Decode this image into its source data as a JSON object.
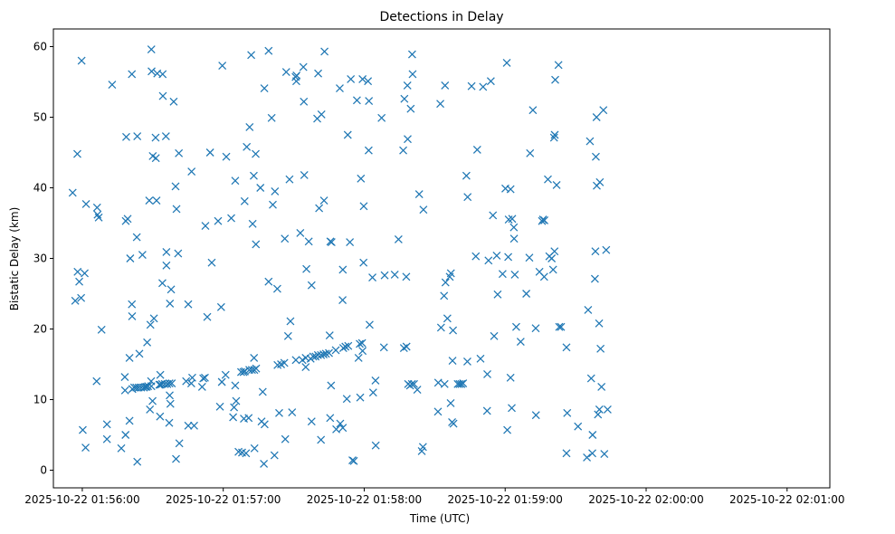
{
  "chart_data": {
    "type": "scatter",
    "title": "Detections in Delay",
    "xlabel": "Time (UTC)",
    "ylabel": "Bistatic Delay (km)",
    "marker": "x",
    "color": "#1f77b4",
    "grid": false,
    "xlim": [
      -12.3,
      318.2
    ],
    "ylim": [
      -2.5,
      62.5
    ],
    "x_unit": "seconds after 2025-10-22 01:56:00",
    "x_ticks": [
      {
        "value": 0,
        "label": "2025-10-22 01:56:00"
      },
      {
        "value": 60,
        "label": "2025-10-22 01:57:00"
      },
      {
        "value": 120,
        "label": "2025-10-22 01:58:00"
      },
      {
        "value": 180,
        "label": "2025-10-22 01:59:00"
      },
      {
        "value": 240,
        "label": "2025-10-22 02:00:00"
      },
      {
        "value": 300,
        "label": "2025-10-22 02:01:00"
      }
    ],
    "y_ticks": [
      {
        "value": 0,
        "label": "0"
      },
      {
        "value": 10,
        "label": "10"
      },
      {
        "value": 20,
        "label": "20"
      },
      {
        "value": 30,
        "label": "30"
      },
      {
        "value": 40,
        "label": "40"
      },
      {
        "value": 50,
        "label": "50"
      },
      {
        "value": 60,
        "label": "60"
      }
    ],
    "points": [
      [
        -4.1,
        39.3
      ],
      [
        -3.0,
        24.0
      ],
      [
        -2.1,
        44.8
      ],
      [
        -2.0,
        28.1
      ],
      [
        -1.3,
        26.7
      ],
      [
        -0.5,
        24.4
      ],
      [
        -0.3,
        58.0
      ],
      [
        0.2,
        5.7
      ],
      [
        1.0,
        27.9
      ],
      [
        1.4,
        3.2
      ],
      [
        1.6,
        37.7
      ],
      [
        6.1,
        12.6
      ],
      [
        6.3,
        37.2
      ],
      [
        6.5,
        36.2
      ],
      [
        7.0,
        35.8
      ],
      [
        8.2,
        19.9
      ],
      [
        10.5,
        6.5
      ],
      [
        10.5,
        4.4
      ],
      [
        12.7,
        54.6
      ],
      [
        16.6,
        3.1
      ],
      [
        18.1,
        13.2
      ],
      [
        18.2,
        11.3
      ],
      [
        18.4,
        5.0
      ],
      [
        18.5,
        35.3
      ],
      [
        18.7,
        47.2
      ],
      [
        19.3,
        35.6
      ],
      [
        20.1,
        7.0
      ],
      [
        20.1,
        15.9
      ],
      [
        20.4,
        30.0
      ],
      [
        21.1,
        56.1
      ],
      [
        21.1,
        23.5
      ],
      [
        21.2,
        21.8
      ],
      [
        21.3,
        11.5
      ],
      [
        22.1,
        11.7
      ],
      [
        23.0,
        11.7
      ],
      [
        23.2,
        33.0
      ],
      [
        23.4,
        47.3
      ],
      [
        23.4,
        1.2
      ],
      [
        24.0,
        11.7
      ],
      [
        24.3,
        16.5
      ],
      [
        25.1,
        11.7
      ],
      [
        25.6,
        30.5
      ],
      [
        26.2,
        11.7
      ],
      [
        26.8,
        11.8
      ],
      [
        27.4,
        11.8
      ],
      [
        27.6,
        18.1
      ],
      [
        28.0,
        11.9
      ],
      [
        28.5,
        38.2
      ],
      [
        28.8,
        8.6
      ],
      [
        29.0,
        20.6
      ],
      [
        29.3,
        12.6
      ],
      [
        29.4,
        11.9
      ],
      [
        29.4,
        59.6
      ],
      [
        29.5,
        56.5
      ],
      [
        29.9,
        9.8
      ],
      [
        30.0,
        44.5
      ],
      [
        30.5,
        21.5
      ],
      [
        31.2,
        47.1
      ],
      [
        31.3,
        44.2
      ],
      [
        31.6,
        38.2
      ],
      [
        31.9,
        56.2
      ],
      [
        32.8,
        12.1
      ],
      [
        33.1,
        7.6
      ],
      [
        33.2,
        13.5
      ],
      [
        33.3,
        12.1
      ],
      [
        34.0,
        12.2
      ],
      [
        34.1,
        26.5
      ],
      [
        34.2,
        56.1
      ],
      [
        34.3,
        53.0
      ],
      [
        35.1,
        12.2
      ],
      [
        35.6,
        47.3
      ],
      [
        35.8,
        29.0
      ],
      [
        35.8,
        30.9
      ],
      [
        36.2,
        12.2
      ],
      [
        37.0,
        6.7
      ],
      [
        37.1,
        12.3
      ],
      [
        37.2,
        10.6
      ],
      [
        37.3,
        23.6
      ],
      [
        37.5,
        9.4
      ],
      [
        37.8,
        25.6
      ],
      [
        38.1,
        12.3
      ],
      [
        38.9,
        52.2
      ],
      [
        39.7,
        40.2
      ],
      [
        39.9,
        1.6
      ],
      [
        40.1,
        37.0
      ],
      [
        40.8,
        30.7
      ],
      [
        41.1,
        44.9
      ],
      [
        41.3,
        3.8
      ],
      [
        44.2,
        12.6
      ],
      [
        45.1,
        23.5
      ],
      [
        45.1,
        6.3
      ],
      [
        46.4,
        12.3
      ],
      [
        46.5,
        42.3
      ],
      [
        46.8,
        13.1
      ],
      [
        47.6,
        6.3
      ],
      [
        51.0,
        11.8
      ],
      [
        51.5,
        13.0
      ],
      [
        52.2,
        13.1
      ],
      [
        52.4,
        34.6
      ],
      [
        53.2,
        21.7
      ],
      [
        54.4,
        45.0
      ],
      [
        55.1,
        29.4
      ],
      [
        57.8,
        35.3
      ],
      [
        58.6,
        9.0
      ],
      [
        59.1,
        23.1
      ],
      [
        59.4,
        12.5
      ],
      [
        59.6,
        57.3
      ],
      [
        61.0,
        13.5
      ],
      [
        61.3,
        44.4
      ],
      [
        63.4,
        35.7
      ],
      [
        64.2,
        7.5
      ],
      [
        64.6,
        8.9
      ],
      [
        65.1,
        41.0
      ],
      [
        65.1,
        12.0
      ],
      [
        65.5,
        9.8
      ],
      [
        66.5,
        2.6
      ],
      [
        67.6,
        13.9
      ],
      [
        68.0,
        2.5
      ],
      [
        68.6,
        13.9
      ],
      [
        68.8,
        7.3
      ],
      [
        69.1,
        38.1
      ],
      [
        69.2,
        14.0
      ],
      [
        69.7,
        2.4
      ],
      [
        70.0,
        45.8
      ],
      [
        70.8,
        7.4
      ],
      [
        71.1,
        14.2
      ],
      [
        71.2,
        48.6
      ],
      [
        71.9,
        58.8
      ],
      [
        72.2,
        14.2
      ],
      [
        72.5,
        34.9
      ],
      [
        73.0,
        41.7
      ],
      [
        73.1,
        15.9
      ],
      [
        73.2,
        14.2
      ],
      [
        73.3,
        3.1
      ],
      [
        73.8,
        44.8
      ],
      [
        73.9,
        32.0
      ],
      [
        74.0,
        14.4
      ],
      [
        75.8,
        40.0
      ],
      [
        76.3,
        6.9
      ],
      [
        76.8,
        11.1
      ],
      [
        77.3,
        0.9
      ],
      [
        77.5,
        54.1
      ],
      [
        77.6,
        6.5
      ],
      [
        79.3,
        59.4
      ],
      [
        79.3,
        26.7
      ],
      [
        80.6,
        49.9
      ],
      [
        81.1,
        37.6
      ],
      [
        81.8,
        2.1
      ],
      [
        82.0,
        39.5
      ],
      [
        83.0,
        25.7
      ],
      [
        83.1,
        14.9
      ],
      [
        83.8,
        8.1
      ],
      [
        84.6,
        15.0
      ],
      [
        86.0,
        15.2
      ],
      [
        86.2,
        32.8
      ],
      [
        86.4,
        4.4
      ],
      [
        86.8,
        56.4
      ],
      [
        87.6,
        19.0
      ],
      [
        88.2,
        41.2
      ],
      [
        88.6,
        21.1
      ],
      [
        89.3,
        8.2
      ],
      [
        90.8,
        55.7
      ],
      [
        90.9,
        15.6
      ],
      [
        91.1,
        55.1
      ],
      [
        91.2,
        55.9
      ],
      [
        92.8,
        33.6
      ],
      [
        93.7,
        15.6
      ],
      [
        94.1,
        57.1
      ],
      [
        94.3,
        52.2
      ],
      [
        94.5,
        41.8
      ],
      [
        95.1,
        15.9
      ],
      [
        95.1,
        14.6
      ],
      [
        95.4,
        28.5
      ],
      [
        96.4,
        32.4
      ],
      [
        97.2,
        15.8
      ],
      [
        97.6,
        6.9
      ],
      [
        97.6,
        26.2
      ],
      [
        98.3,
        16.1
      ],
      [
        99.3,
        16.1
      ],
      [
        100.0,
        49.8
      ],
      [
        100.3,
        16.3
      ],
      [
        100.4,
        56.2
      ],
      [
        100.8,
        37.1
      ],
      [
        101.6,
        4.3
      ],
      [
        101.6,
        16.3
      ],
      [
        101.8,
        50.4
      ],
      [
        102.7,
        16.4
      ],
      [
        102.9,
        38.2
      ],
      [
        103.1,
        59.3
      ],
      [
        103.7,
        16.5
      ],
      [
        105.0,
        16.6
      ],
      [
        105.3,
        19.1
      ],
      [
        105.5,
        7.4
      ],
      [
        105.6,
        32.4
      ],
      [
        105.9,
        12.0
      ],
      [
        106.1,
        32.3
      ],
      [
        107.9,
        17.0
      ],
      [
        108.1,
        5.8
      ],
      [
        109.6,
        54.1
      ],
      [
        109.8,
        6.6
      ],
      [
        110.8,
        24.1
      ],
      [
        110.9,
        28.4
      ],
      [
        110.9,
        6.0
      ],
      [
        111.1,
        17.3
      ],
      [
        112.0,
        17.5
      ],
      [
        112.6,
        10.1
      ],
      [
        113.0,
        47.5
      ],
      [
        113.2,
        17.6
      ],
      [
        113.9,
        32.3
      ],
      [
        114.3,
        55.4
      ],
      [
        115.0,
        1.4
      ],
      [
        115.6,
        1.3
      ],
      [
        116.9,
        52.4
      ],
      [
        117.6,
        15.9
      ],
      [
        118.1,
        17.9
      ],
      [
        118.3,
        10.3
      ],
      [
        118.6,
        41.3
      ],
      [
        119.1,
        18.0
      ],
      [
        119.3,
        16.9
      ],
      [
        119.3,
        55.4
      ],
      [
        119.7,
        29.4
      ],
      [
        119.8,
        37.4
      ],
      [
        121.6,
        55.1
      ],
      [
        121.9,
        45.3
      ],
      [
        122.0,
        52.3
      ],
      [
        122.3,
        20.6
      ],
      [
        123.5,
        27.3
      ],
      [
        123.8,
        11.0
      ],
      [
        124.8,
        12.7
      ],
      [
        124.9,
        3.5
      ],
      [
        127.4,
        49.9
      ],
      [
        128.4,
        17.4
      ],
      [
        128.7,
        27.6
      ],
      [
        133.0,
        27.7
      ],
      [
        134.6,
        32.7
      ],
      [
        136.6,
        45.3
      ],
      [
        136.9,
        17.3
      ],
      [
        137.1,
        52.6
      ],
      [
        137.9,
        27.4
      ],
      [
        138.0,
        17.5
      ],
      [
        138.4,
        54.5
      ],
      [
        138.5,
        46.9
      ],
      [
        138.7,
        12.2
      ],
      [
        139.5,
        12.0
      ],
      [
        139.8,
        51.2
      ],
      [
        140.3,
        12.2
      ],
      [
        140.4,
        58.9
      ],
      [
        140.6,
        56.1
      ],
      [
        141.2,
        12.2
      ],
      [
        142.6,
        11.4
      ],
      [
        143.4,
        39.1
      ],
      [
        144.5,
        2.7
      ],
      [
        145.0,
        3.3
      ],
      [
        145.2,
        36.9
      ],
      [
        151.4,
        8.3
      ],
      [
        151.5,
        12.4
      ],
      [
        152.4,
        51.9
      ],
      [
        152.7,
        20.2
      ],
      [
        154.0,
        24.7
      ],
      [
        154.2,
        12.2
      ],
      [
        154.4,
        54.5
      ],
      [
        154.6,
        26.6
      ],
      [
        155.4,
        21.5
      ],
      [
        156.4,
        27.4
      ],
      [
        156.8,
        9.5
      ],
      [
        156.9,
        27.9
      ],
      [
        157.4,
        6.8
      ],
      [
        157.6,
        15.5
      ],
      [
        157.8,
        19.8
      ],
      [
        158.0,
        6.6
      ],
      [
        159.8,
        12.2
      ],
      [
        160.6,
        12.2
      ],
      [
        161.4,
        12.2
      ],
      [
        162.1,
        12.3
      ],
      [
        163.5,
        41.7
      ],
      [
        163.9,
        15.4
      ],
      [
        164.0,
        38.7
      ],
      [
        165.7,
        54.4
      ],
      [
        167.5,
        30.3
      ],
      [
        168.1,
        45.4
      ],
      [
        169.5,
        15.8
      ],
      [
        170.6,
        54.3
      ],
      [
        172.3,
        8.4
      ],
      [
        172.4,
        13.6
      ],
      [
        172.9,
        29.7
      ],
      [
        173.9,
        55.1
      ],
      [
        174.8,
        36.1
      ],
      [
        175.3,
        19.0
      ],
      [
        176.4,
        30.4
      ],
      [
        176.8,
        24.9
      ],
      [
        178.9,
        27.8
      ],
      [
        180.1,
        39.9
      ],
      [
        180.7,
        57.7
      ],
      [
        180.9,
        5.7
      ],
      [
        181.3,
        30.2
      ],
      [
        181.5,
        35.5
      ],
      [
        182.3,
        13.1
      ],
      [
        182.3,
        39.8
      ],
      [
        182.8,
        8.8
      ],
      [
        183.0,
        35.6
      ],
      [
        183.7,
        34.4
      ],
      [
        183.8,
        32.8
      ],
      [
        184.1,
        27.7
      ],
      [
        184.7,
        20.3
      ],
      [
        186.6,
        18.2
      ],
      [
        189.0,
        25.0
      ],
      [
        190.3,
        30.1
      ],
      [
        190.6,
        44.9
      ],
      [
        191.8,
        51.0
      ],
      [
        193.0,
        20.1
      ],
      [
        193.1,
        7.8
      ],
      [
        194.6,
        28.1
      ],
      [
        195.7,
        35.3
      ],
      [
        196.1,
        35.5
      ],
      [
        196.6,
        27.4
      ],
      [
        196.7,
        35.4
      ],
      [
        198.2,
        41.2
      ],
      [
        198.8,
        30.3
      ],
      [
        199.8,
        30.0
      ],
      [
        200.4,
        28.4
      ],
      [
        200.8,
        47.1
      ],
      [
        201.0,
        31.0
      ],
      [
        201.1,
        47.5
      ],
      [
        201.3,
        55.3
      ],
      [
        201.9,
        40.4
      ],
      [
        202.7,
        57.4
      ],
      [
        203.0,
        20.3
      ],
      [
        203.8,
        20.3
      ],
      [
        206.1,
        17.4
      ],
      [
        206.1,
        2.4
      ],
      [
        206.4,
        8.1
      ],
      [
        211.0,
        6.2
      ],
      [
        214.8,
        1.8
      ],
      [
        215.3,
        22.7
      ],
      [
        216.1,
        46.6
      ],
      [
        216.6,
        13.0
      ],
      [
        217.1,
        2.4
      ],
      [
        217.2,
        5.0
      ],
      [
        218.2,
        27.1
      ],
      [
        218.4,
        31.0
      ],
      [
        218.6,
        44.4
      ],
      [
        218.9,
        50.0
      ],
      [
        219.0,
        40.3
      ],
      [
        219.5,
        7.9
      ],
      [
        220.0,
        20.8
      ],
      [
        220.1,
        8.6
      ],
      [
        220.3,
        40.8
      ],
      [
        220.6,
        17.2
      ],
      [
        221.0,
        11.8
      ],
      [
        221.8,
        51.0
      ],
      [
        222.2,
        2.3
      ],
      [
        223.0,
        31.2
      ],
      [
        223.6,
        8.6
      ]
    ]
  }
}
